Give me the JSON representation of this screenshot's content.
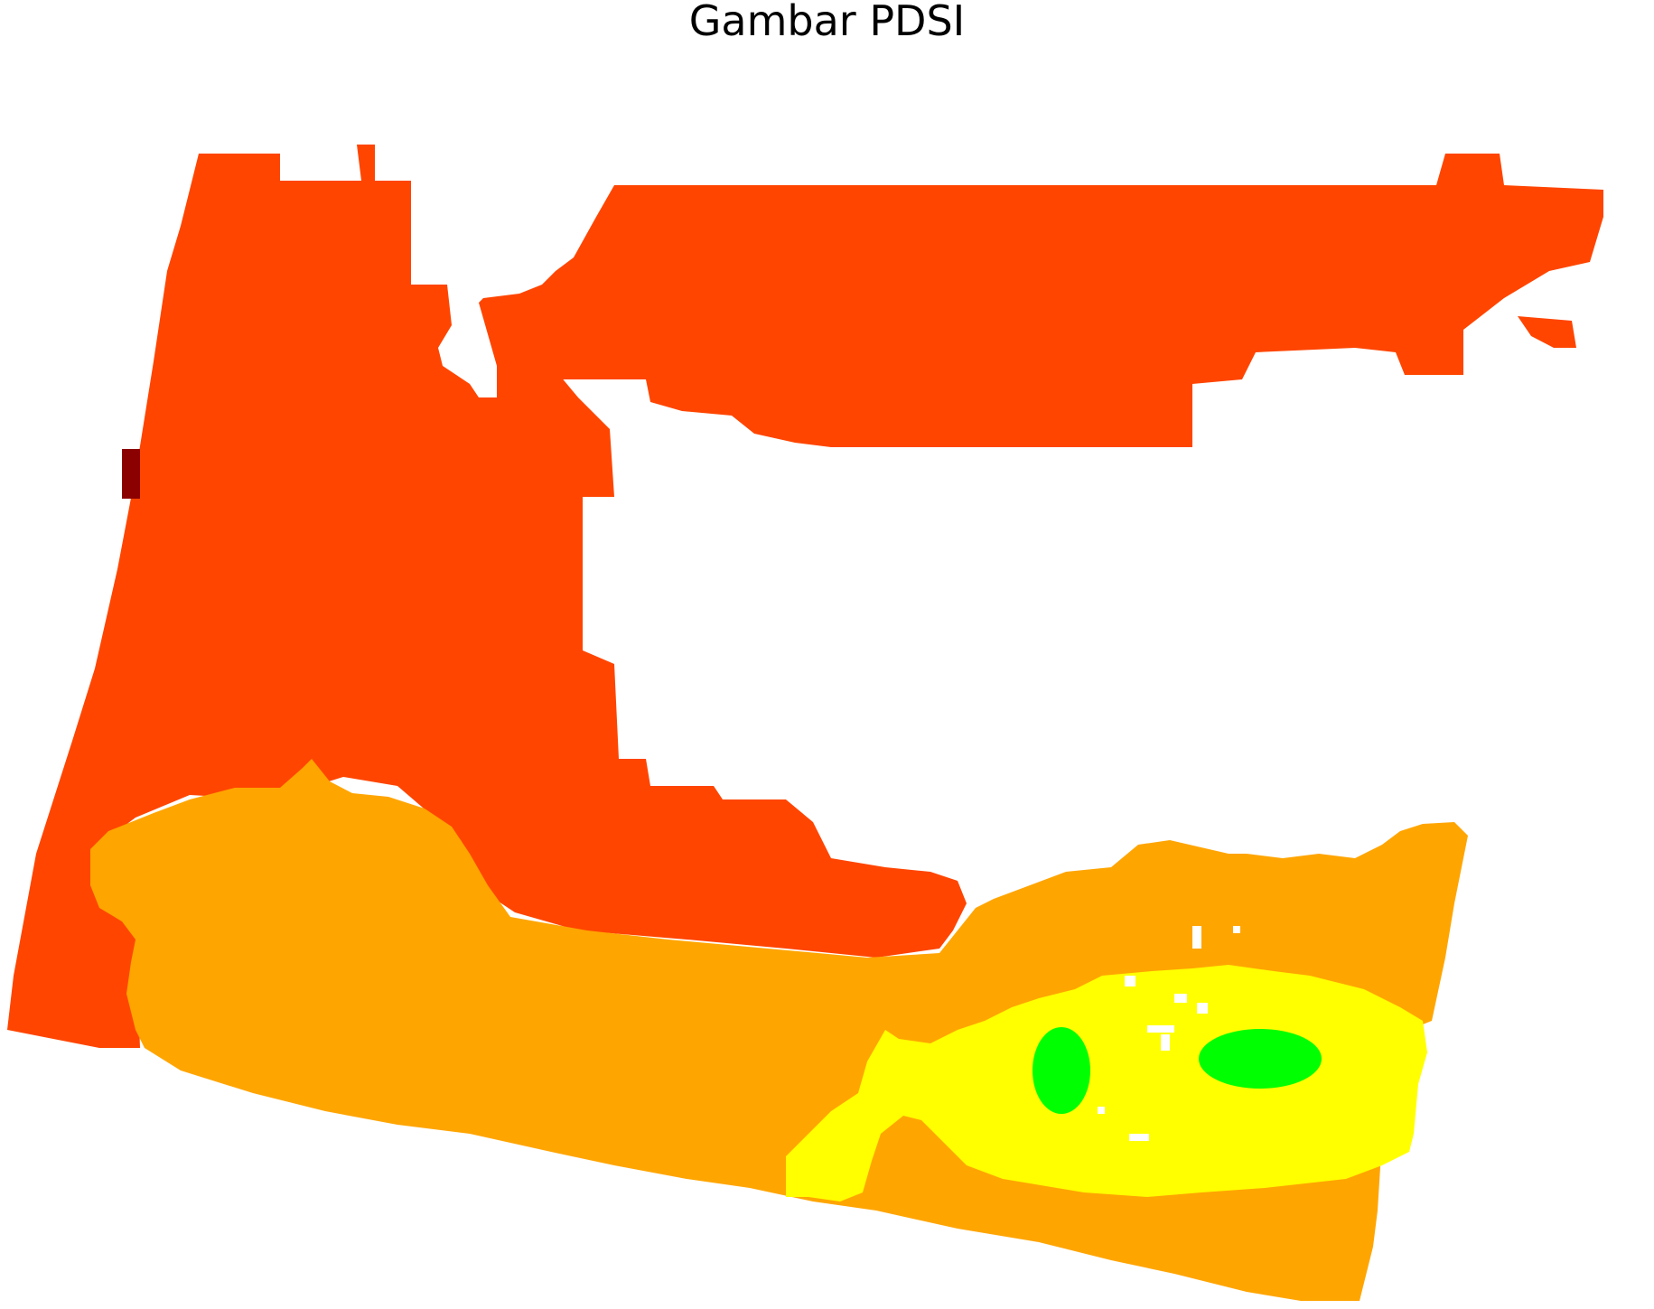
{
  "title": "Gambar PDSI",
  "map": {
    "classes": [
      {
        "key": "extreme_drought",
        "color": "#8b0000"
      },
      {
        "key": "severe_drought",
        "color": "#ff4500"
      },
      {
        "key": "moderate_drought",
        "color": "#ffa500"
      },
      {
        "key": "mild_drought",
        "color": "#ffff00"
      },
      {
        "key": "near_normal",
        "color": "#00ff00"
      }
    ],
    "background": "#ffffff"
  }
}
